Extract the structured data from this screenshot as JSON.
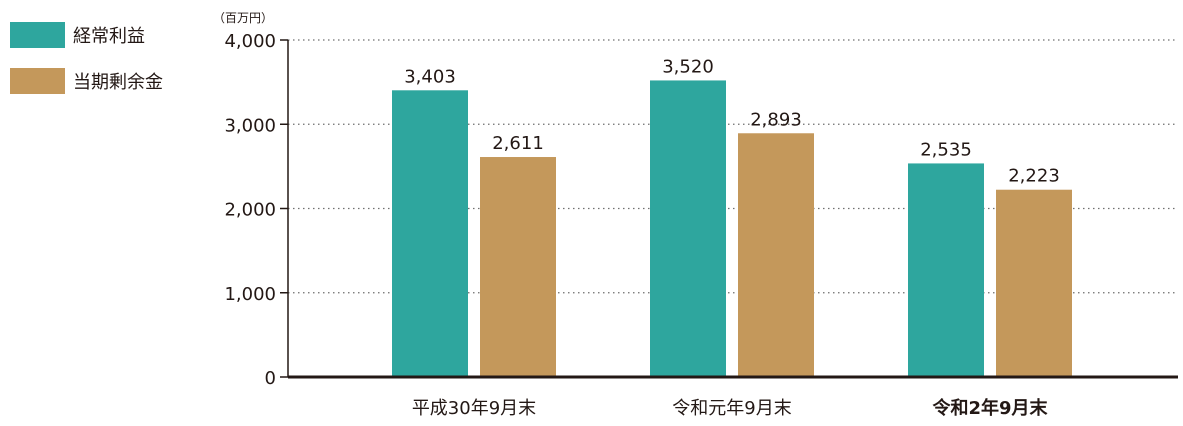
{
  "chart_data": {
    "type": "bar",
    "unit": "（百万円）",
    "categories": [
      "平成30年9月末",
      "令和元年9月末",
      "令和2年9月末"
    ],
    "series": [
      {
        "name": "経常利益",
        "values": [
          3403,
          3520,
          2535
        ],
        "labels": [
          "3,403",
          "3,520",
          "2,535"
        ],
        "color": "#2ea69e"
      },
      {
        "name": "当期剰余金",
        "values": [
          2611,
          2893,
          2223
        ],
        "labels": [
          "2,611",
          "2,893",
          "2,223"
        ],
        "color": "#c4985b"
      }
    ],
    "ylim": [
      0,
      4000
    ],
    "yticks": [
      0,
      1000,
      2000,
      3000,
      4000
    ],
    "ytick_labels": [
      "0",
      "1,000",
      "2,000",
      "3,000",
      "4,000"
    ],
    "grid": true,
    "legend_position": "top-left",
    "bold_category": "令和2年9月末"
  }
}
